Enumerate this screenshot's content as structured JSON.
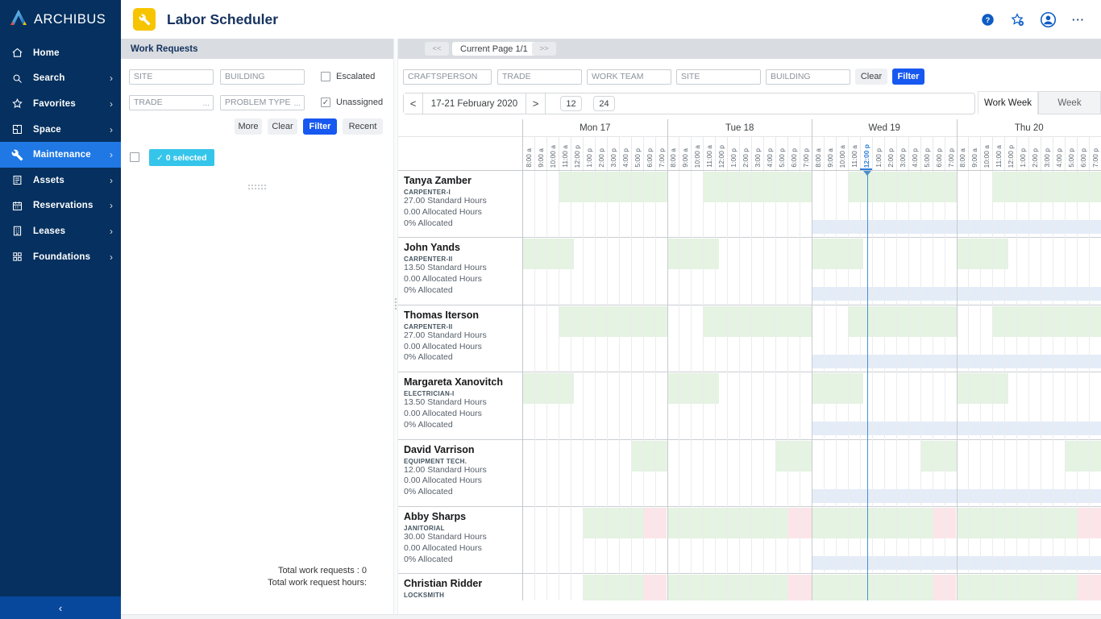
{
  "brand": {
    "name": "ARCHIBUS"
  },
  "header": {
    "title": "Labor Scheduler",
    "app_icon": "wrench-icon",
    "icons": [
      {
        "name": "help-icon"
      },
      {
        "name": "favorite-add-icon"
      },
      {
        "name": "user-avatar-icon"
      },
      {
        "name": "more-options-icon"
      }
    ]
  },
  "sidebar": {
    "items": [
      {
        "label": "Home",
        "icon": "home-icon",
        "chevron": false,
        "active": false
      },
      {
        "label": "Search",
        "icon": "search-icon",
        "chevron": true,
        "active": false
      },
      {
        "label": "Favorites",
        "icon": "star-icon",
        "chevron": true,
        "active": false
      },
      {
        "label": "Space",
        "icon": "floorplan-icon",
        "chevron": true,
        "active": false
      },
      {
        "label": "Maintenance",
        "icon": "wrench-icon",
        "chevron": true,
        "active": true
      },
      {
        "label": "Assets",
        "icon": "assets-icon",
        "chevron": true,
        "active": false
      },
      {
        "label": "Reservations",
        "icon": "calendar-icon",
        "chevron": true,
        "active": false
      },
      {
        "label": "Leases",
        "icon": "building-icon",
        "chevron": true,
        "active": false
      },
      {
        "label": "Foundations",
        "icon": "grid-icon",
        "chevron": true,
        "active": false
      }
    ],
    "chevron_glyph": "›",
    "collapse_glyph": "‹"
  },
  "work_requests": {
    "title": "Work Requests",
    "filters": {
      "site_placeholder": "SITE",
      "building_placeholder": "BUILDING",
      "trade_placeholder": "TRADE",
      "problem_type_placeholder": "PROBLEM TYPE",
      "picker_indicator": "...",
      "escalated_label": "Escalated",
      "escalated_checked": false,
      "unassigned_label": "Unassigned",
      "unassigned_checked": true,
      "check_glyph": "✓",
      "more_label": "More",
      "clear_label": "Clear",
      "filter_label": "Filter",
      "recent_label": "Recent"
    },
    "selection": {
      "label": "0 selected",
      "check_glyph": "✓"
    },
    "totals": {
      "requests": "Total work requests : 0",
      "hours": "Total work request hours:"
    }
  },
  "scheduler": {
    "pagination": {
      "prev": "<<",
      "label": "Current Page 1/1",
      "next": ">>"
    },
    "filters": {
      "craftsperson_placeholder": "CRAFTSPERSON",
      "trade_placeholder": "TRADE",
      "work_team_placeholder": "WORK TEAM",
      "site_placeholder": "SITE",
      "building_placeholder": "BUILDING",
      "clear_label": "Clear",
      "filter_label": "Filter"
    },
    "date_nav": {
      "prev": "<",
      "label": "17-21 February 2020",
      "next": ">",
      "hour_options": [
        "12",
        "24"
      ]
    },
    "view_tabs": [
      {
        "label": "Work Week",
        "active": true
      },
      {
        "label": "Week",
        "active": false
      }
    ],
    "days": [
      "Mon 17",
      "Tue 18",
      "Wed 19",
      "Thu 20"
    ],
    "time_labels": [
      "8:00 a",
      "9:00 a",
      "10:00 a",
      "11:00 a",
      "12:00 p",
      "1:00 p",
      "2:00 p",
      "3:00 p",
      "4:00 p",
      "5:00 p",
      "6:00 p",
      "7:00 p"
    ],
    "current_time": {
      "day": 2,
      "slot": 4,
      "label": "12:00 p",
      "line_slot_offset": 4.6
    },
    "elapsed_from_day": 2,
    "people": [
      {
        "name": "Tanya Zamber",
        "trade": "CARPENTER-I",
        "standard": "27.00 Standard Hours",
        "allocated": "0.00 Allocated Hours",
        "percent": "0% Allocated",
        "blocks": [
          {
            "day": 0,
            "start": 3,
            "end": 12,
            "kind": "available"
          },
          {
            "day": 1,
            "start": 3,
            "end": 12,
            "kind": "available"
          },
          {
            "day": 2,
            "start": 3,
            "end": 12,
            "kind": "available"
          },
          {
            "day": 3,
            "start": 3,
            "end": 12,
            "kind": "available"
          }
        ]
      },
      {
        "name": "John Yands",
        "trade": "CARPENTER-II",
        "standard": "13.50 Standard Hours",
        "allocated": "0.00 Allocated Hours",
        "percent": "0% Allocated",
        "blocks": [
          {
            "day": 0,
            "start": 0,
            "end": 4.3,
            "kind": "available"
          },
          {
            "day": 1,
            "start": 0,
            "end": 4.3,
            "kind": "available"
          },
          {
            "day": 2,
            "start": 0,
            "end": 4.3,
            "kind": "available"
          },
          {
            "day": 3,
            "start": 0,
            "end": 4.3,
            "kind": "available"
          }
        ]
      },
      {
        "name": "Thomas Iterson",
        "trade": "CARPENTER-II",
        "standard": "27.00 Standard Hours",
        "allocated": "0.00 Allocated Hours",
        "percent": "0% Allocated",
        "blocks": [
          {
            "day": 0,
            "start": 3,
            "end": 12,
            "kind": "available"
          },
          {
            "day": 1,
            "start": 3,
            "end": 12,
            "kind": "available"
          },
          {
            "day": 2,
            "start": 3,
            "end": 12,
            "kind": "available"
          },
          {
            "day": 3,
            "start": 3,
            "end": 12,
            "kind": "available"
          }
        ]
      },
      {
        "name": "Margareta Xanovitch",
        "trade": "ELECTRICIAN-I",
        "standard": "13.50 Standard Hours",
        "allocated": "0.00 Allocated Hours",
        "percent": "0% Allocated",
        "blocks": [
          {
            "day": 0,
            "start": 0,
            "end": 4.3,
            "kind": "available"
          },
          {
            "day": 1,
            "start": 0,
            "end": 4.3,
            "kind": "available"
          },
          {
            "day": 2,
            "start": 0,
            "end": 4.3,
            "kind": "available"
          },
          {
            "day": 3,
            "start": 0,
            "end": 4.3,
            "kind": "available"
          }
        ]
      },
      {
        "name": "David Varrison",
        "trade": "EQUIPMENT TECH.",
        "standard": "12.00 Standard Hours",
        "allocated": "0.00 Allocated Hours",
        "percent": "0% Allocated",
        "blocks": [
          {
            "day": 0,
            "start": 9,
            "end": 12,
            "kind": "available"
          },
          {
            "day": 1,
            "start": 9,
            "end": 12,
            "kind": "available"
          },
          {
            "day": 2,
            "start": 9,
            "end": 12,
            "kind": "available"
          },
          {
            "day": 3,
            "start": 9,
            "end": 12,
            "kind": "available"
          }
        ]
      },
      {
        "name": "Abby Sharps",
        "trade": "JANITORIAL",
        "standard": "30.00 Standard Hours",
        "allocated": "0.00 Allocated Hours",
        "percent": "0% Allocated",
        "blocks": [
          {
            "day": 0,
            "start": 5,
            "end": 10,
            "kind": "available"
          },
          {
            "day": 0,
            "start": 10,
            "end": 12,
            "kind": "overtime"
          },
          {
            "day": 1,
            "start": 0,
            "end": 10,
            "kind": "available"
          },
          {
            "day": 1,
            "start": 10,
            "end": 12,
            "kind": "overtime"
          },
          {
            "day": 2,
            "start": 0,
            "end": 10,
            "kind": "available"
          },
          {
            "day": 2,
            "start": 10,
            "end": 12,
            "kind": "overtime"
          },
          {
            "day": 3,
            "start": 0,
            "end": 10,
            "kind": "available"
          },
          {
            "day": 3,
            "start": 10,
            "end": 12,
            "kind": "overtime"
          }
        ]
      },
      {
        "name": "Christian Ridder",
        "trade": "LOCKSMITH",
        "standard": "",
        "allocated": "",
        "percent": "",
        "blocks": [
          {
            "day": 0,
            "start": 5,
            "end": 10,
            "kind": "available"
          },
          {
            "day": 0,
            "start": 10,
            "end": 12,
            "kind": "overtime"
          },
          {
            "day": 1,
            "start": 0,
            "end": 10,
            "kind": "available"
          },
          {
            "day": 1,
            "start": 10,
            "end": 12,
            "kind": "overtime"
          },
          {
            "day": 2,
            "start": 0,
            "end": 10,
            "kind": "available"
          },
          {
            "day": 2,
            "start": 10,
            "end": 12,
            "kind": "overtime"
          },
          {
            "day": 3,
            "start": 0,
            "end": 10,
            "kind": "available"
          },
          {
            "day": 3,
            "start": 10,
            "end": 12,
            "kind": "overtime"
          }
        ]
      }
    ]
  },
  "colors": {
    "sidebar": "#05305f",
    "sidebar_active": "#1f78e4",
    "collapse_bar": "#08489c",
    "accent_blue": "#1758f0",
    "selected_cyan": "#35c5ea",
    "available_block": "#e5f3e2",
    "overtime_block": "#fbe5e8",
    "elapsed_band": "#e4ecf7",
    "current_line": "#4a90cd",
    "grid_line_light": "#ececee",
    "grid_line_day": "#c9ccd0",
    "app_icon_bg": "#f6c500"
  }
}
